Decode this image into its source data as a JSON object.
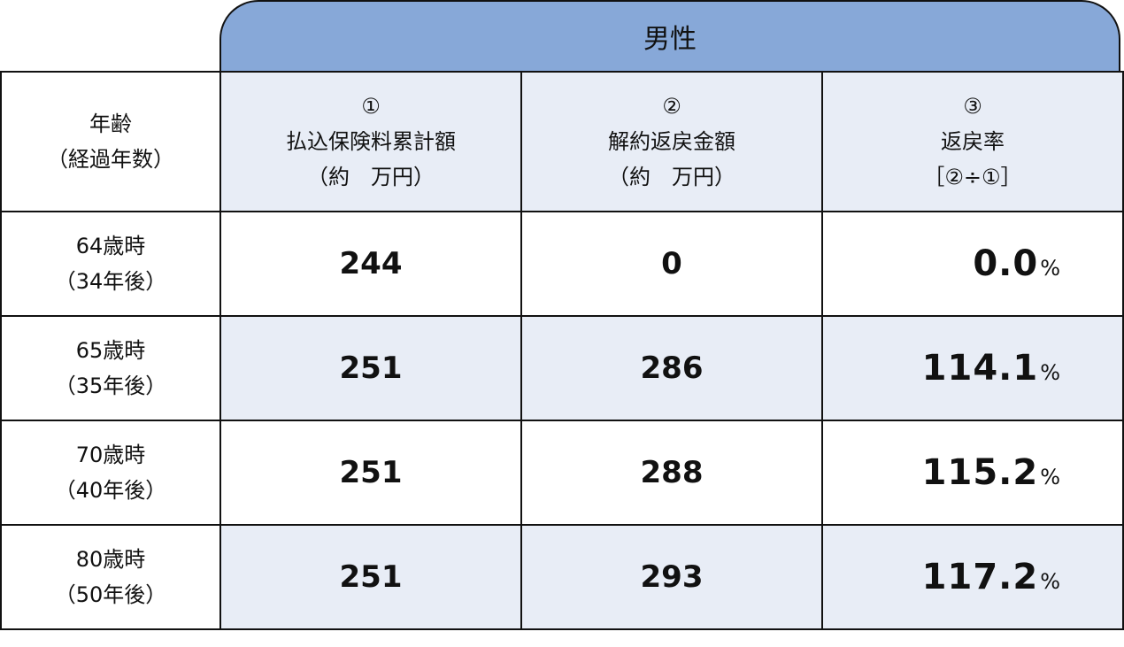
{
  "banner": "男性",
  "headers": {
    "age": [
      "年齢",
      "（経過年数）"
    ],
    "col1": [
      "①",
      "払込保険料累計額",
      "（約　万円）"
    ],
    "col2": [
      "②",
      "解約返戻金額",
      "（約　万円）"
    ],
    "col3": [
      "③",
      "返戻率",
      "［②÷①］"
    ]
  },
  "rows": [
    {
      "age": "64歳時",
      "years": "（34年後）",
      "paid": "244",
      "refund": "0",
      "rate": "0.0",
      "unit": "%"
    },
    {
      "age": "65歳時",
      "years": "（35年後）",
      "paid": "251",
      "refund": "286",
      "rate": "114.1",
      "unit": "%"
    },
    {
      "age": "70歳時",
      "years": "（40年後）",
      "paid": "251",
      "refund": "288",
      "rate": "115.2",
      "unit": "%"
    },
    {
      "age": "80歳時",
      "years": "（50年後）",
      "paid": "251",
      "refund": "293",
      "rate": "117.2",
      "unit": "%"
    }
  ],
  "colors": {
    "banner": "#87a8d8",
    "shade": "#e8edf6"
  }
}
